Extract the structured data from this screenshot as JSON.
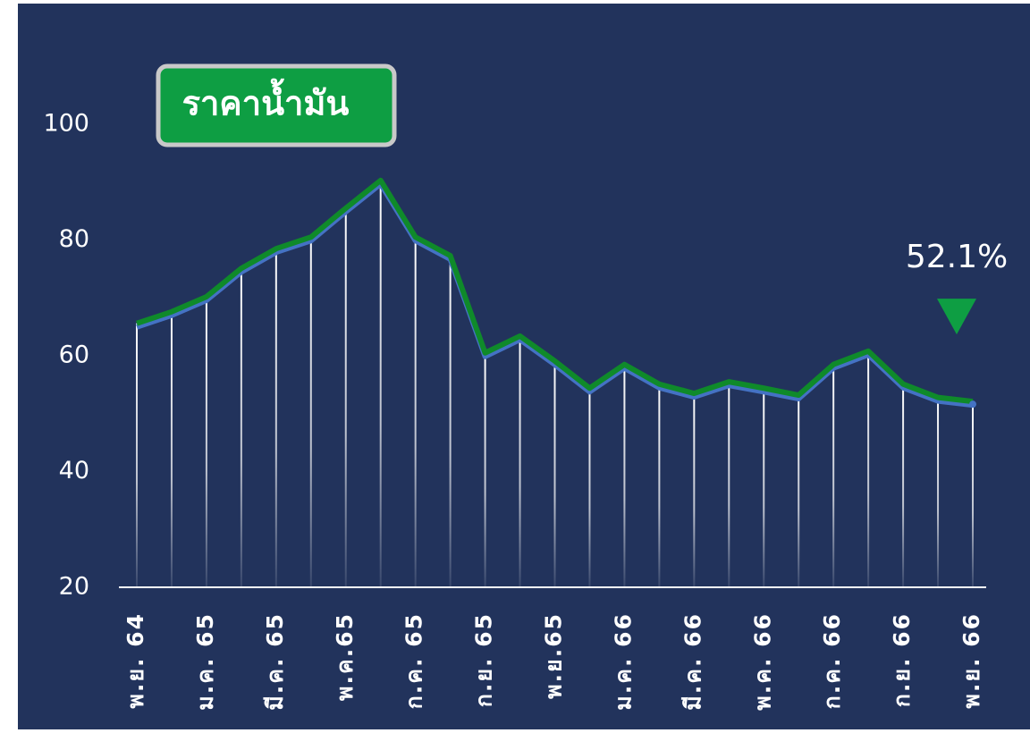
{
  "chart_data": {
    "type": "line",
    "title": "ราคาน้ำมัน",
    "categories": [
      "พ.ย. 64",
      null,
      "ม.ค. 65",
      null,
      "มี.ค. 65",
      null,
      "พ.ค.65",
      null,
      "ก.ค. 65",
      null,
      "ก.ย. 65",
      null,
      "พ.ย.65",
      null,
      "ม.ค. 66",
      null,
      "มี.ค. 66",
      null,
      "พ.ค. 66",
      null,
      "ก.ค. 66",
      null,
      "ก.ย. 66",
      null,
      "พ.ย. 66"
    ],
    "values": [
      65.6,
      67.6,
      70.2,
      75.1,
      78.5,
      80.5,
      85.5,
      90.3,
      80.5,
      77.3,
      60.5,
      63.4,
      59.1,
      54.4,
      58.5,
      55.1,
      53.5,
      55.5,
      54.4,
      53.2,
      58.5,
      60.8,
      55.1,
      52.8,
      52.1
    ],
    "value_labels": [
      null,
      null,
      null,
      null,
      null,
      null,
      null,
      null,
      null,
      null,
      null,
      null,
      null,
      null,
      null,
      null,
      null,
      null,
      null,
      null,
      null,
      null,
      null,
      null,
      "52.1%"
    ],
    "color": "#0f8a2a",
    "shadow_color": "#4472c4",
    "ylim": [
      20,
      100
    ],
    "yticks": [
      20,
      40,
      60,
      80,
      100
    ]
  }
}
